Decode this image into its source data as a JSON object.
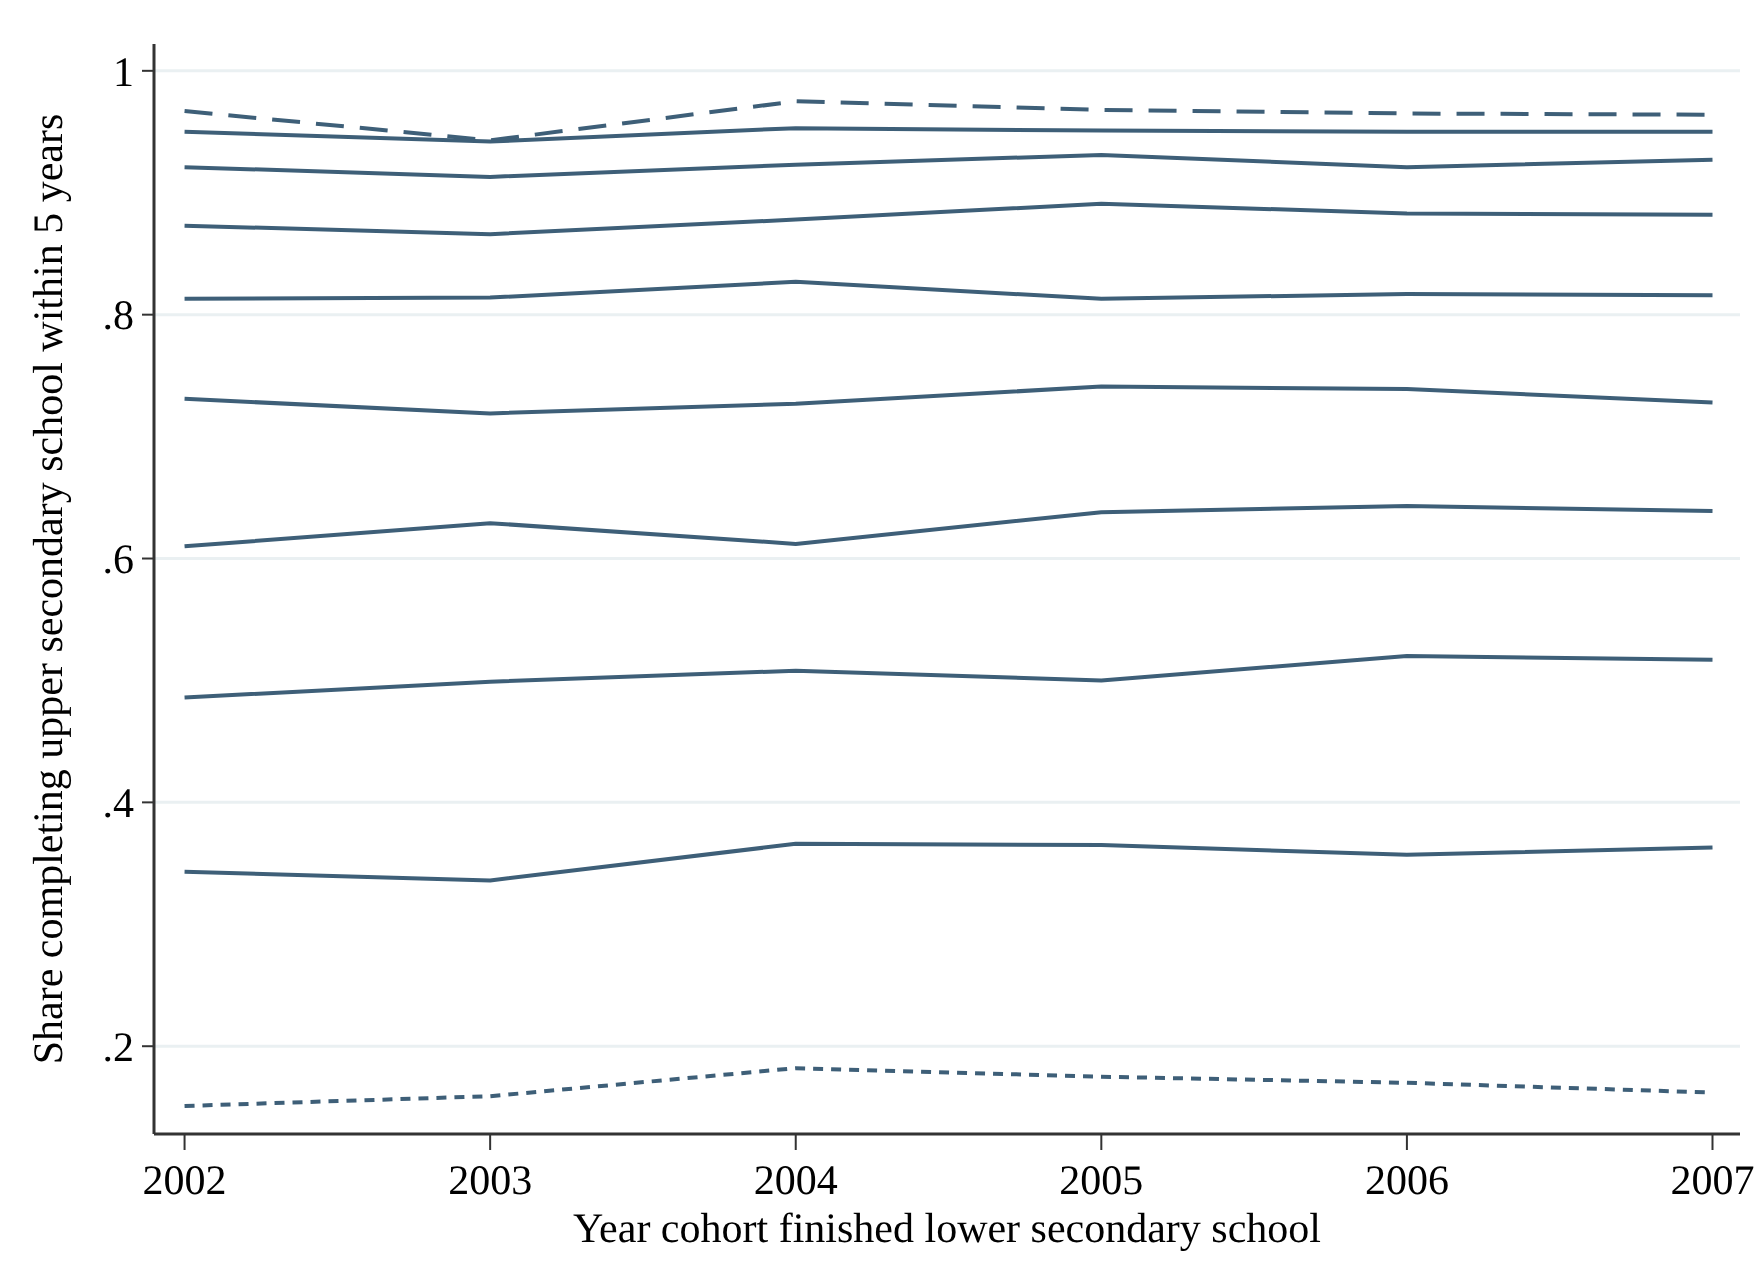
{
  "chart_data": {
    "type": "line",
    "xlabel": "Year cohort finished lower secondary school",
    "ylabel": "Share completing upper secondary school within 5 years",
    "x": [
      2002,
      2003,
      2004,
      2005,
      2006,
      2007
    ],
    "xlim": [
      2001.9,
      2007.09
    ],
    "xticks": [
      2002,
      2003,
      2004,
      2005,
      2006,
      2007
    ],
    "ylim": [
      0.128,
      1.022
    ],
    "yticks": [
      {
        "value": 0.2,
        "label": ".2"
      },
      {
        "value": 0.4,
        "label": ".4"
      },
      {
        "value": 0.6,
        "label": ".6"
      },
      {
        "value": 0.8,
        "label": ".8"
      },
      {
        "value": 1,
        "label": "1"
      }
    ],
    "grid": "y",
    "marker": "none",
    "series": [
      {
        "color": "#3e5f78",
        "line_style": "dashed",
        "values": [
          0.967,
          0.943,
          0.975,
          0.968,
          0.965,
          0.964
        ]
      },
      {
        "color": "#3e5f78",
        "line_style": "solid",
        "values": [
          0.95,
          0.942,
          0.953,
          0.951,
          0.95,
          0.95
        ]
      },
      {
        "color": "#3e5f78",
        "line_style": "solid",
        "values": [
          0.921,
          0.913,
          0.923,
          0.931,
          0.921,
          0.927
        ]
      },
      {
        "color": "#3e5f78",
        "line_style": "solid",
        "values": [
          0.873,
          0.866,
          0.878,
          0.891,
          0.883,
          0.882
        ]
      },
      {
        "color": "#3e5f78",
        "line_style": "solid",
        "values": [
          0.813,
          0.814,
          0.827,
          0.813,
          0.817,
          0.816
        ]
      },
      {
        "color": "#3e5f78",
        "line_style": "solid",
        "values": [
          0.731,
          0.719,
          0.727,
          0.741,
          0.739,
          0.728
        ]
      },
      {
        "color": "#3e5f78",
        "line_style": "solid",
        "values": [
          0.61,
          0.629,
          0.612,
          0.638,
          0.643,
          0.639
        ]
      },
      {
        "color": "#3e5f78",
        "line_style": "solid",
        "values": [
          0.486,
          0.499,
          0.508,
          0.5,
          0.52,
          0.517
        ]
      },
      {
        "color": "#3e5f78",
        "line_style": "solid",
        "values": [
          0.343,
          0.336,
          0.366,
          0.365,
          0.357,
          0.363
        ]
      },
      {
        "color": "#3e5f78",
        "line_style": "dotted",
        "values": [
          0.151,
          0.159,
          0.182,
          0.175,
          0.17,
          0.162
        ]
      }
    ]
  }
}
